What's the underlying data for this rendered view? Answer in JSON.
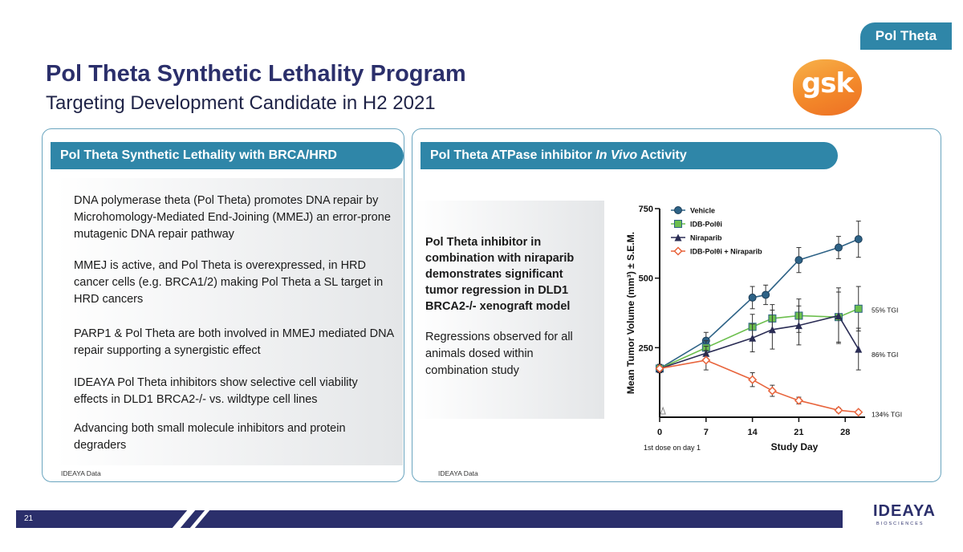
{
  "tag": "Pol Theta",
  "title": "Pol Theta Synthetic Lethality Program",
  "subtitle": "Targeting Development Candidate in H2 2021",
  "logo": "gsk",
  "left_panel": {
    "header": "Pol Theta Synthetic Lethality with BRCA/HRD",
    "bullets": [
      "DNA polymerase theta (Pol Theta) promotes DNA repair by Microhomology-Mediated End-Joining (MMEJ) an error-prone mutagenic DNA repair pathway",
      "MMEJ is active, and Pol Theta is overexpressed, in HRD cancer cells (e.g. BRCA1/2) making Pol Theta a SL target in HRD cancers",
      "PARP1 & Pol Theta are both involved in MMEJ mediated DNA repair supporting a synergistic effect",
      "IDEAYA Pol Theta inhibitors show selective cell viability effects in DLD1 BRCA2-/- vs. wildtype cell lines",
      "Advancing both small molecule inhibitors and protein degraders"
    ],
    "source": "IDEAYA Data"
  },
  "right_panel": {
    "header_pre": "Pol Theta ATPase inhibitor ",
    "header_italic": "In Vivo",
    "header_post": " Activity",
    "callout": "Pol Theta inhibitor in combination with niraparib demonstrates significant tumor regression in DLD1 BRCA2-/- xenograft model",
    "callout2": "Regressions observed for all animals dosed within combination study",
    "source": "IDEAYA Data"
  },
  "chart_data": {
    "type": "line",
    "xlabel": "Study Day",
    "ylabel": "Mean Tumor Volume (mm³) ± S.E.M.",
    "x_ticks": [
      0,
      7,
      14,
      21,
      28
    ],
    "y_ticks": [
      250,
      500,
      750
    ],
    "xlim": [
      0,
      31
    ],
    "ylim": [
      0,
      750
    ],
    "note": "1st dose on day 1",
    "series": [
      {
        "name": "Vehicle",
        "marker": "circle",
        "color": "#2d6286",
        "x": [
          0,
          7,
          14,
          16,
          21,
          27,
          30
        ],
        "y": [
          175,
          275,
          430,
          440,
          565,
          610,
          640
        ],
        "err": [
          15,
          30,
          40,
          35,
          45,
          40,
          65
        ],
        "tgi": ""
      },
      {
        "name": "IDB-Polθi",
        "marker": "square",
        "color": "#6cbf4e",
        "x": [
          0,
          7,
          14,
          17,
          21,
          27,
          30
        ],
        "y": [
          175,
          250,
          325,
          355,
          365,
          360,
          390
        ],
        "err": [
          15,
          25,
          45,
          50,
          60,
          90,
          80
        ],
        "tgi": "55% TGI"
      },
      {
        "name": "Niraparib",
        "marker": "triangle",
        "color": "#2b2d55",
        "x": [
          0,
          7,
          14,
          17,
          21,
          27,
          30
        ],
        "y": [
          175,
          230,
          285,
          315,
          330,
          365,
          245
        ],
        "err": [
          15,
          25,
          50,
          70,
          70,
          100,
          75
        ],
        "tgi": "86% TGI"
      },
      {
        "name": "IDB-Polθi + Niraparib",
        "marker": "diamond",
        "color": "#e8643c",
        "x": [
          0,
          7,
          14,
          17,
          21,
          27,
          30
        ],
        "y": [
          175,
          205,
          135,
          95,
          60,
          25,
          18
        ],
        "err": [
          15,
          35,
          25,
          20,
          12,
          8,
          6
        ],
        "tgi": "134% TGI"
      }
    ]
  },
  "footer": {
    "page": "21",
    "brand": "IDEAYA",
    "brand_sub": "BIOSCIENCES"
  }
}
